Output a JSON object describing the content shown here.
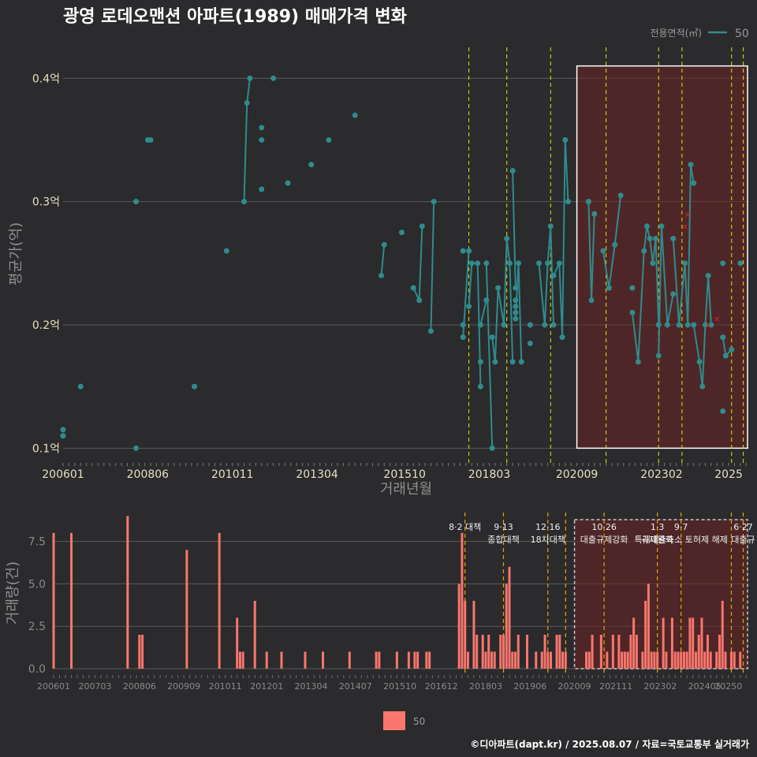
{
  "title": "광영 로데오맨션 아파트(1989) 매매가격 변화",
  "footer": "©디아파트(dapt.kr) / 2025.08.07 / 자료=국토교통부 실거래가",
  "legend_top": {
    "title": "전용면적(㎡)",
    "label": "50"
  },
  "legend_bottom": {
    "label": "50"
  },
  "colors": {
    "background": "#2b2a2d",
    "line": "#2f8c8c",
    "bar": "#f8766d",
    "policy_line": "#e6e600",
    "highlight": "#6b2323",
    "cancel": "#e0202a"
  },
  "chart_data": [
    {
      "type": "scatter",
      "xlabel": "거래년월",
      "ylabel": "평균가(억)",
      "ylim": [
        0.09,
        0.42
      ],
      "xlim": [
        "2006-01",
        "2025-08"
      ],
      "x_ticks": [
        "200601",
        "200806",
        "201011",
        "201304",
        "201510",
        "201803",
        "202009",
        "202302",
        "2025"
      ],
      "y_ticks": [
        "0.1억",
        "0.2억",
        "0.3억",
        "0.4억"
      ],
      "y_tick_values": [
        0.1,
        0.2,
        0.3,
        0.4
      ],
      "grid": "horizontal",
      "series": [
        {
          "name": "50",
          "points": [
            [
              "2006-01",
              0.11
            ],
            [
              "2006-01",
              0.115
            ],
            [
              "2006-01",
              0.11
            ],
            [
              "2006-07",
              0.15
            ],
            [
              "2008-02",
              0.3
            ],
            [
              "2008-02",
              0.1
            ],
            [
              "2008-06",
              0.35
            ],
            [
              "2008-07",
              0.35
            ],
            [
              "2009-10",
              0.15
            ],
            [
              "2010-09",
              0.26
            ],
            [
              "2011-03",
              0.3
            ],
            [
              "2011-04",
              0.38
            ],
            [
              "2011-05",
              0.4
            ],
            [
              "2011-09",
              0.35
            ],
            [
              "2011-09",
              0.36
            ],
            [
              "2011-09",
              0.31
            ],
            [
              "2012-01",
              0.4
            ],
            [
              "2012-06",
              0.315
            ],
            [
              "2013-02",
              0.33
            ],
            [
              "2013-08",
              0.35
            ],
            [
              "2014-05",
              0.37
            ],
            [
              "2015-02",
              0.24
            ],
            [
              "2015-03",
              0.265
            ],
            [
              "2015-09",
              0.275
            ],
            [
              "2016-01",
              0.23
            ],
            [
              "2016-03",
              0.22
            ],
            [
              "2016-04",
              0.28
            ],
            [
              "2016-07",
              0.195
            ],
            [
              "2016-08",
              0.3
            ],
            [
              "2017-06",
              0.26
            ],
            [
              "2017-06",
              0.2
            ],
            [
              "2017-06",
              0.19
            ],
            [
              "2017-08",
              0.26
            ],
            [
              "2017-08",
              0.215
            ],
            [
              "2017-09",
              0.25
            ],
            [
              "2017-11",
              0.25
            ],
            [
              "2017-12",
              0.15
            ],
            [
              "2017-12",
              0.17
            ],
            [
              "2017-12",
              0.2
            ],
            [
              "2018-02",
              0.22
            ],
            [
              "2018-02",
              0.25
            ],
            [
              "2018-04",
              0.1
            ],
            [
              "2018-04",
              0.19
            ],
            [
              "2018-05",
              0.17
            ],
            [
              "2018-06",
              0.23
            ],
            [
              "2018-08",
              0.2
            ],
            [
              "2018-09",
              0.27
            ],
            [
              "2018-10",
              0.25
            ],
            [
              "2018-11",
              0.17
            ],
            [
              "2018-11",
              0.325
            ],
            [
              "2018-12",
              0.23
            ],
            [
              "2018-12",
              0.22
            ],
            [
              "2018-12",
              0.215
            ],
            [
              "2018-12",
              0.21
            ],
            [
              "2018-12",
              0.205
            ],
            [
              "2019-01",
              0.25
            ],
            [
              "2019-02",
              0.17
            ],
            [
              "2019-05",
              0.2
            ],
            [
              "2019-05",
              0.185
            ],
            [
              "2019-08",
              0.25
            ],
            [
              "2019-10",
              0.2
            ],
            [
              "2019-11",
              0.25
            ],
            [
              "2019-12",
              0.28
            ],
            [
              "2020-01",
              0.2
            ],
            [
              "2020-01",
              0.24
            ],
            [
              "2020-03",
              0.25
            ],
            [
              "2020-04",
              0.19
            ],
            [
              "2020-05",
              0.35
            ],
            [
              "2020-06",
              0.3
            ],
            [
              "2021-01",
              0.3
            ],
            [
              "2021-02",
              0.22
            ],
            [
              "2021-03",
              0.29
            ],
            [
              "2021-06",
              0.26
            ],
            [
              "2021-08",
              0.23
            ],
            [
              "2021-10",
              0.265
            ],
            [
              "2021-12",
              0.305
            ],
            [
              "2022-04",
              0.23
            ],
            [
              "2022-04",
              0.21
            ],
            [
              "2022-06",
              0.17
            ],
            [
              "2022-08",
              0.26
            ],
            [
              "2022-09",
              0.28
            ],
            [
              "2022-10",
              0.27
            ],
            [
              "2022-11",
              0.25
            ],
            [
              "2022-12",
              0.27
            ],
            [
              "2023-01",
              0.2
            ],
            [
              "2023-01",
              0.175
            ],
            [
              "2023-02",
              0.28
            ],
            [
              "2023-04",
              0.2
            ],
            [
              "2023-06",
              0.225
            ],
            [
              "2023-06",
              0.27
            ],
            [
              "2023-08",
              0.2
            ],
            [
              "2023-10",
              0.25
            ],
            [
              "2023-11",
              0.2
            ],
            [
              "2023-12",
              0.33
            ],
            [
              "2024-01",
              0.315
            ],
            [
              "2024-01",
              0.2
            ],
            [
              "2024-03",
              0.17
            ],
            [
              "2024-04",
              0.15
            ],
            [
              "2024-05",
              0.2
            ],
            [
              "2024-06",
              0.24
            ],
            [
              "2024-07",
              0.2
            ],
            [
              "2024-11",
              0.13
            ],
            [
              "2024-11",
              0.25
            ],
            [
              "2024-11",
              0.19
            ],
            [
              "2024-12",
              0.175
            ],
            [
              "2025-02",
              0.18
            ],
            [
              "2025-05",
              0.25
            ]
          ]
        }
      ],
      "cancelled_points": [
        [
          "2023-10",
          0.28
        ],
        [
          "2023-11",
          0.29
        ],
        [
          "2024-06",
          0.2
        ],
        [
          "2024-09",
          0.205
        ]
      ],
      "policy_lines": [
        "2017-08",
        "2018-09",
        "2019-12",
        "2021-07",
        "2023-01",
        "2023-09",
        "2025-02",
        "2025-06"
      ],
      "highlight_range": [
        "2020-09",
        "2025-08"
      ]
    },
    {
      "type": "bar",
      "ylabel": "거래량(건)",
      "ylim": [
        0,
        9.2
      ],
      "x_ticks": [
        "200601",
        "200703",
        "200806",
        "200909",
        "201011",
        "201201",
        "201304",
        "201407",
        "201510",
        "201612",
        "201803",
        "201906",
        "202009",
        "202111",
        "202302",
        "202405",
        "20250"
      ],
      "y_ticks": [
        "0.0",
        "2.5",
        "5.0",
        "7.5"
      ],
      "y_tick_values": [
        0,
        2.5,
        5,
        7.5
      ],
      "series": [
        {
          "name": "50",
          "bars": [
            [
              "2006-01",
              8
            ],
            [
              "2006-07",
              8
            ],
            [
              "2008-02",
              9
            ],
            [
              "2008-06",
              2
            ],
            [
              "2008-07",
              2
            ],
            [
              "2009-10",
              7
            ],
            [
              "2010-09",
              8
            ],
            [
              "2011-03",
              3
            ],
            [
              "2011-04",
              1
            ],
            [
              "2011-05",
              1
            ],
            [
              "2011-09",
              4
            ],
            [
              "2012-01",
              1
            ],
            [
              "2012-06",
              1
            ],
            [
              "2013-02",
              1
            ],
            [
              "2013-08",
              1
            ],
            [
              "2014-05",
              1
            ],
            [
              "2015-02",
              1
            ],
            [
              "2015-03",
              1
            ],
            [
              "2015-09",
              1
            ],
            [
              "2016-01",
              1
            ],
            [
              "2016-03",
              1
            ],
            [
              "2016-04",
              1
            ],
            [
              "2016-07",
              1
            ],
            [
              "2016-08",
              1
            ],
            [
              "2017-06",
              5
            ],
            [
              "2017-07",
              8
            ],
            [
              "2017-08",
              4
            ],
            [
              "2017-09",
              1
            ],
            [
              "2017-11",
              4
            ],
            [
              "2017-12",
              2
            ],
            [
              "2018-02",
              2
            ],
            [
              "2018-03",
              1
            ],
            [
              "2018-04",
              2
            ],
            [
              "2018-05",
              1
            ],
            [
              "2018-06",
              1
            ],
            [
              "2018-08",
              2
            ],
            [
              "2018-09",
              2
            ],
            [
              "2018-10",
              5
            ],
            [
              "2018-11",
              6
            ],
            [
              "2018-12",
              1
            ],
            [
              "2019-01",
              1
            ],
            [
              "2019-02",
              2
            ],
            [
              "2019-05",
              2
            ],
            [
              "2019-08",
              1
            ],
            [
              "2019-10",
              1
            ],
            [
              "2019-11",
              2
            ],
            [
              "2019-12",
              1
            ],
            [
              "2020-01",
              1
            ],
            [
              "2020-03",
              2
            ],
            [
              "2020-04",
              2
            ],
            [
              "2020-05",
              1
            ],
            [
              "2020-06",
              1
            ],
            [
              "2021-01",
              1
            ],
            [
              "2021-02",
              1
            ],
            [
              "2021-03",
              2
            ],
            [
              "2021-06",
              2
            ],
            [
              "2021-08",
              1
            ],
            [
              "2021-10",
              2
            ],
            [
              "2021-12",
              2
            ],
            [
              "2022-01",
              1
            ],
            [
              "2022-02",
              1
            ],
            [
              "2022-03",
              1
            ],
            [
              "2022-04",
              2
            ],
            [
              "2022-05",
              3
            ],
            [
              "2022-06",
              2
            ],
            [
              "2022-08",
              1
            ],
            [
              "2022-09",
              4
            ],
            [
              "2022-10",
              5
            ],
            [
              "2022-11",
              1
            ],
            [
              "2022-12",
              1
            ],
            [
              "2023-01",
              1
            ],
            [
              "2023-03",
              3
            ],
            [
              "2023-04",
              1
            ],
            [
              "2023-06",
              3
            ],
            [
              "2023-07",
              1
            ],
            [
              "2023-08",
              1
            ],
            [
              "2023-09",
              1
            ],
            [
              "2023-10",
              1
            ],
            [
              "2023-11",
              1
            ],
            [
              "2023-12",
              3
            ],
            [
              "2024-01",
              3
            ],
            [
              "2024-02",
              1
            ],
            [
              "2024-03",
              2
            ],
            [
              "2024-04",
              3
            ],
            [
              "2024-05",
              1
            ],
            [
              "2024-06",
              2
            ],
            [
              "2024-07",
              1
            ],
            [
              "2024-09",
              1
            ],
            [
              "2024-10",
              2
            ],
            [
              "2024-11",
              4
            ],
            [
              "2024-12",
              1
            ],
            [
              "2025-02",
              1
            ],
            [
              "2025-03",
              1
            ],
            [
              "2025-05",
              1
            ]
          ]
        }
      ],
      "annotations": [
        {
          "x": "2017-08",
          "lines": [
            "8·2 대책"
          ]
        },
        {
          "x": "2018-09",
          "lines": [
            "9·13",
            "종합대책"
          ]
        },
        {
          "x": "2019-12",
          "lines": [
            "12·16",
            "18차대책"
          ]
        },
        {
          "x": "2021-07",
          "lines": [
            "10·26",
            "대출규제강화"
          ]
        },
        {
          "x": "2023-01",
          "lines": [
            "1·3",
            "규제완화"
          ]
        },
        {
          "x": "2023-09",
          "lines": [
            "9·7",
            "특례대출축소 토허제 해제"
          ]
        },
        {
          "x": "2025-06",
          "lines": [
            "6·27",
            "대출규"
          ]
        }
      ],
      "policy_lines": [
        "2017-08",
        "2018-09",
        "2019-12",
        "2020-06",
        "2021-07",
        "2023-01",
        "2023-09",
        "2025-02",
        "2025-06"
      ],
      "highlight_range": [
        "2020-09",
        "2025-08"
      ]
    }
  ]
}
